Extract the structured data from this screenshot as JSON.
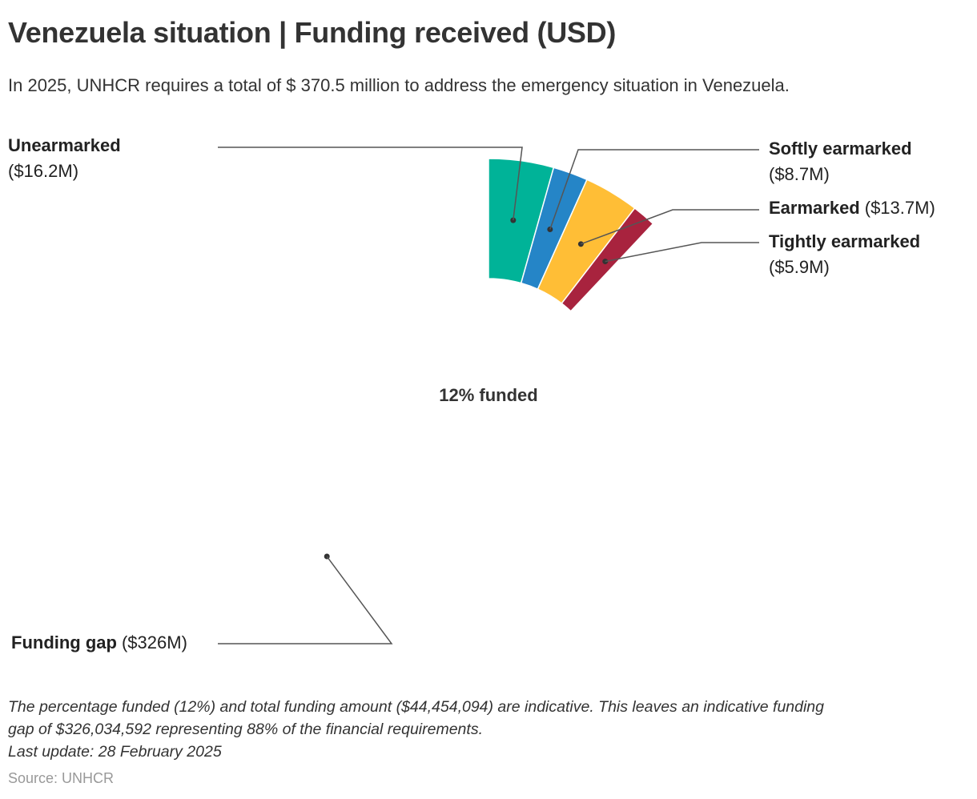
{
  "header": {
    "title": "Venezuela situation | Funding received (USD)",
    "subtitle": "In 2025, UNHCR requires a total of $ 370.5 million to address the emergency situation in Venezuela."
  },
  "chart_data": {
    "type": "pie",
    "variant": "donut",
    "total_requirement_musd": 370.5,
    "center_label": "12% funded",
    "slices": [
      {
        "name": "Unearmarked",
        "value": 16.2,
        "label_name": "Unearmarked",
        "label_value": "($16.2M)",
        "color": "#00B398"
      },
      {
        "name": "Softly earmarked",
        "value": 8.7,
        "label_name": "Softly earmarked",
        "label_value": "($8.7M)",
        "color": "#2585C7"
      },
      {
        "name": "Earmarked",
        "value": 13.7,
        "label_name": "Earmarked",
        "label_value": "($13.7M)",
        "color": "#FFBE36"
      },
      {
        "name": "Tightly earmarked",
        "value": 5.9,
        "label_name": "Tightly earmarked",
        "label_value": "($5.9M)",
        "color": "#A8233E"
      },
      {
        "name": "Funding gap",
        "value": 326,
        "label_name": "Funding gap",
        "label_value": "($326M)",
        "color": "#FFFFFF"
      }
    ]
  },
  "footer": {
    "note_line1": "The percentage funded (12%) and total funding amount ($44,454,094) are indicative. This leaves an indicative funding",
    "note_line2": "gap of $326,034,592 representing 88% of the financial requirements.",
    "note_line3": "Last update: 28 February 2025",
    "source": "Source: UNHCR"
  }
}
